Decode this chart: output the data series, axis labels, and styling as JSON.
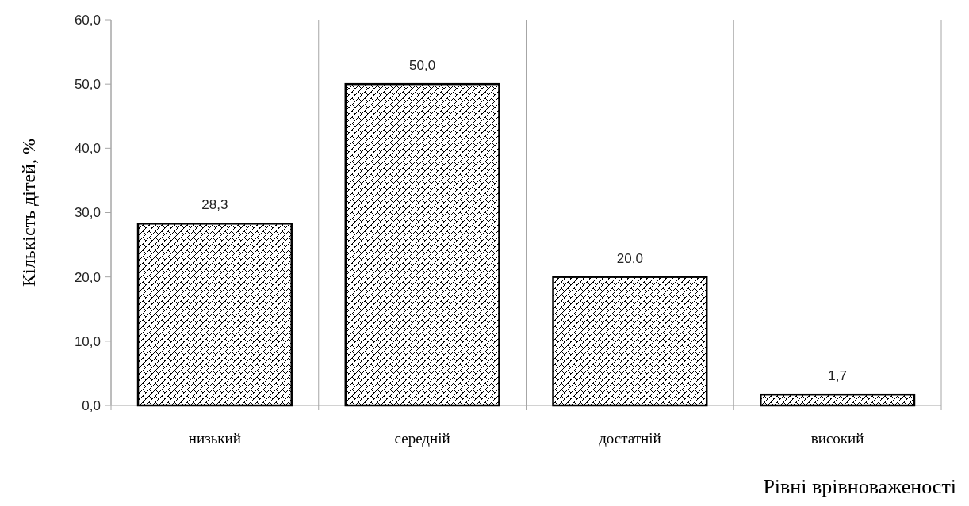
{
  "chart_data": {
    "type": "bar",
    "xlabel": "Рівні врівноваженості",
    "ylabel": "Кількість дітей, %",
    "categories": [
      "низький",
      "середній",
      "достатній",
      "високий"
    ],
    "values": [
      28.3,
      50.0,
      20.0,
      1.7
    ],
    "value_labels": [
      "28,3",
      "50,0",
      "20,0",
      "1,7"
    ],
    "color": "#000000",
    "ylim": [
      0,
      60
    ],
    "yticks": [
      {
        "value": 0,
        "label": "0,0"
      },
      {
        "value": 10,
        "label": "10,0"
      },
      {
        "value": 20,
        "label": "20,0"
      },
      {
        "value": 30,
        "label": "30,0"
      },
      {
        "value": 40,
        "label": "40,0"
      },
      {
        "value": 50,
        "label": "50,0"
      },
      {
        "value": 60,
        "label": "60,0"
      }
    ],
    "grid": "x"
  }
}
